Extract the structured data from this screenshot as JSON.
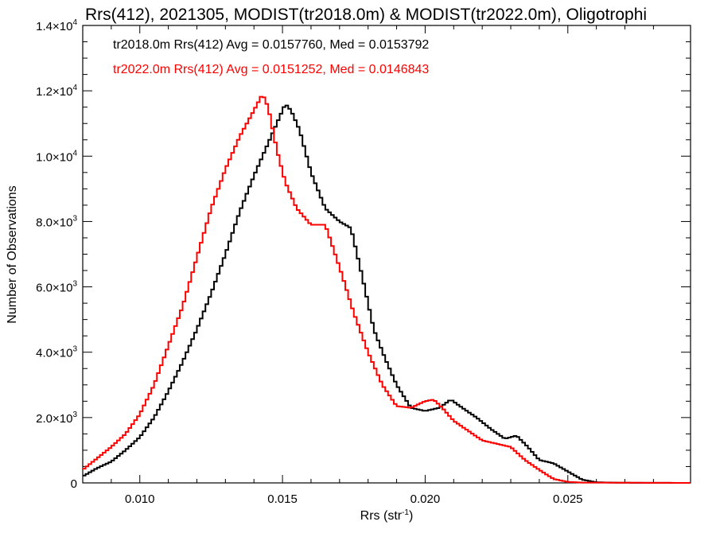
{
  "chart_data": {
    "type": "line",
    "style": "step-histogram",
    "title": "Rrs(412), 2021305, MODIST(tr2018.0m) & MODIST(tr2022.0m), Oligotrophi",
    "xlabel": "Rrs (str",
    "xlabel_exp": "-1",
    "xlabel_close": ")",
    "ylabel": "Number of Observations",
    "xlim": [
      0.008,
      0.0293
    ],
    "ylim": [
      0,
      14000
    ],
    "x_ticks": [
      {
        "value": 0.01,
        "label": "0.010"
      },
      {
        "value": 0.015,
        "label": "0.015"
      },
      {
        "value": 0.02,
        "label": "0.020"
      },
      {
        "value": 0.025,
        "label": "0.025"
      }
    ],
    "y_ticks": [
      {
        "value": 0,
        "label": "0",
        "exp": ""
      },
      {
        "value": 2000,
        "label": "2.0×10",
        "exp": "3"
      },
      {
        "value": 4000,
        "label": "4.0×10",
        "exp": "3"
      },
      {
        "value": 6000,
        "label": "6.0×10",
        "exp": "3"
      },
      {
        "value": 8000,
        "label": "8.0×10",
        "exp": "3"
      },
      {
        "value": 10000,
        "label": "1.0×10",
        "exp": "4"
      },
      {
        "value": 12000,
        "label": "1.2×10",
        "exp": "4"
      },
      {
        "value": 14000,
        "label": "1.4×10",
        "exp": "4"
      }
    ],
    "legend": [
      {
        "text": "tr2018.0m Rrs(412) Avg = 0.0157760, Med = 0.0153792",
        "color": "#000000"
      },
      {
        "text": "tr2022.0m Rrs(412) Avg = 0.0151252, Med = 0.0146843",
        "color": "#ff0000"
      }
    ],
    "series": [
      {
        "color": "#000000",
        "x": [
          0.008,
          0.0085,
          0.009,
          0.0095,
          0.01,
          0.0105,
          0.011,
          0.0115,
          0.012,
          0.0125,
          0.013,
          0.0135,
          0.014,
          0.0143,
          0.0146,
          0.0149,
          0.0151,
          0.0153,
          0.0156,
          0.016,
          0.0165,
          0.017,
          0.0174,
          0.0178,
          0.0182,
          0.0186,
          0.019,
          0.0195,
          0.02,
          0.0205,
          0.0209,
          0.0213,
          0.0218,
          0.0223,
          0.0228,
          0.0232,
          0.0236,
          0.024,
          0.0245,
          0.025,
          0.0255,
          0.026,
          0.0265,
          0.027,
          0.0293
        ],
        "y": [
          200,
          450,
          650,
          1000,
          1400,
          2000,
          2800,
          3700,
          4700,
          5800,
          7000,
          8300,
          9400,
          10000,
          10600,
          11200,
          11600,
          11400,
          10800,
          9500,
          8400,
          8000,
          7800,
          6300,
          4700,
          3800,
          3000,
          2300,
          2200,
          2300,
          2550,
          2300,
          2000,
          1650,
          1350,
          1450,
          1100,
          700,
          600,
          350,
          100,
          20,
          10,
          5,
          0
        ]
      },
      {
        "color": "#ff0000",
        "x": [
          0.008,
          0.0085,
          0.009,
          0.0095,
          0.01,
          0.0105,
          0.011,
          0.0115,
          0.012,
          0.0125,
          0.013,
          0.0135,
          0.014,
          0.0143,
          0.0145,
          0.0148,
          0.0151,
          0.0155,
          0.016,
          0.0165,
          0.017,
          0.0175,
          0.018,
          0.0185,
          0.019,
          0.0195,
          0.02,
          0.0203,
          0.0206,
          0.021,
          0.0215,
          0.022,
          0.0225,
          0.023,
          0.0235,
          0.024,
          0.0245,
          0.025,
          0.0255,
          0.0293
        ],
        "y": [
          400,
          750,
          1100,
          1500,
          2100,
          3000,
          4200,
          5400,
          6900,
          8400,
          9600,
          10600,
          11400,
          11900,
          11500,
          10200,
          9200,
          8400,
          7900,
          7900,
          6600,
          5200,
          4000,
          3000,
          2350,
          2300,
          2500,
          2550,
          2300,
          1900,
          1600,
          1300,
          1200,
          1100,
          700,
          400,
          120,
          30,
          10,
          0
        ]
      }
    ]
  }
}
